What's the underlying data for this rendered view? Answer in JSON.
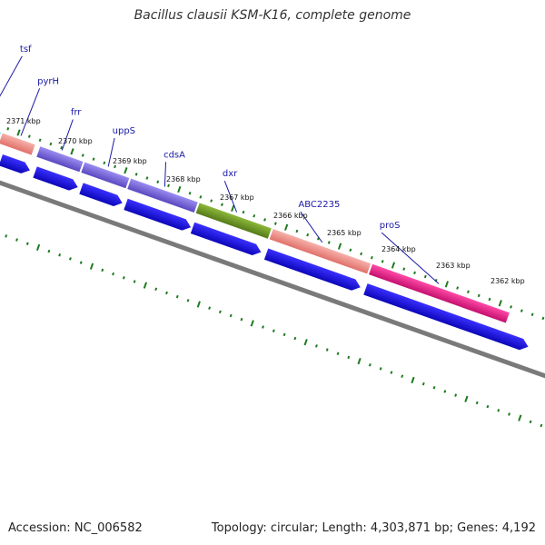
{
  "header": {
    "title": "Bacillus clausii KSM-K16, complete genome"
  },
  "footer": {
    "accession": "Accession: NC_006582",
    "summary": "Topology: circular; Length: 4,303,871 bp; Genes: 4,192"
  },
  "tick_labels": [
    "2371 kbp",
    "2370 kbp",
    "2369 kbp",
    "2368 kbp",
    "2367 kbp",
    "2366 kbp",
    "2365 kbp",
    "2364 kbp",
    "2363 kbp",
    "2362 kbp"
  ],
  "gene_labels": [
    "tsf",
    "pyrH",
    "frr",
    "uppS",
    "cdsA",
    "dxr",
    "ABC2235",
    "proS"
  ],
  "colors": {
    "cyan": "#2ec4f0",
    "salmon": "#f08a80",
    "purple": "#7a68d8",
    "olive": "#6e9a24",
    "magenta": "#e8208a",
    "blue_arrow": "#1a10e8",
    "backbone": "#7a7a7a",
    "ticks": "#1f7a1f",
    "label_line": "#1a1aa6"
  }
}
